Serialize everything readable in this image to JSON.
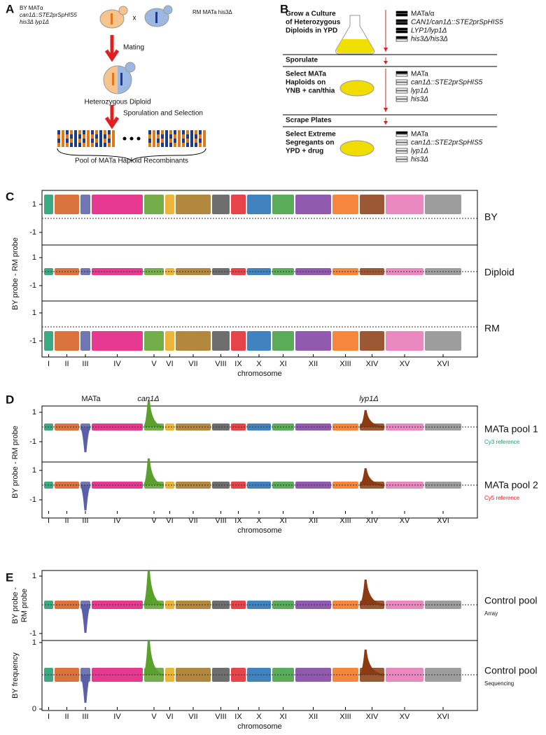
{
  "panel_a": {
    "letter": "A",
    "by_strain": [
      "BY MATα",
      "can1Δ::STE2prSpHIS5",
      "his3Δ lyp1Δ"
    ],
    "cross": "x",
    "rm_strain": "RM MATa his3Δ",
    "mating": "Mating",
    "diploid": "Heterozygous Diploid",
    "sporulation": "Sporulation and Selection",
    "pool": "Pool of MATa Haploid Recombinants"
  },
  "panel_b": {
    "letter": "B",
    "steps": [
      {
        "lines": [
          "Grow a Culture",
          "of Heterozygous",
          "Diploids in YPD"
        ],
        "genotypes": [
          "MATa/α",
          "CAN1/can1Δ::STE2prSpHIS5",
          "LYP1/lyp1Δ",
          "his3Δ/his3Δ"
        ]
      },
      {
        "lines": [
          "Sporulate"
        ]
      },
      {
        "lines": [
          "Select MATa",
          "Haploids on",
          "YNB + can/thia"
        ],
        "genotypes": [
          "MATa",
          "can1Δ::STE2prSpHIS5",
          "lyp1Δ",
          "his3Δ"
        ]
      },
      {
        "lines": [
          "Scrape Plates"
        ]
      },
      {
        "lines": [
          "Select Extreme",
          "Segregants on",
          "YPD + drug"
        ],
        "genotypes": [
          "MATa",
          "can1Δ::STE2prSpHIS5",
          "lyp1Δ",
          "his3Δ"
        ]
      }
    ]
  },
  "chromosomes": [
    {
      "label": "I",
      "color": "#1b9a6c"
    },
    {
      "label": "II",
      "color": "#d35a1c"
    },
    {
      "label": "III",
      "color": "#5b5ea8"
    },
    {
      "label": "IV",
      "color": "#e0187c"
    },
    {
      "label": "V",
      "color": "#5aa02c"
    },
    {
      "label": "VI",
      "color": "#e6a817"
    },
    {
      "label": "VII",
      "color": "#a5721c"
    },
    {
      "label": "VIII",
      "color": "#555555"
    },
    {
      "label": "IX",
      "color": "#e3222a"
    },
    {
      "label": "X",
      "color": "#1f6db4"
    },
    {
      "label": "XI",
      "color": "#3d9c3d"
    },
    {
      "label": "XII",
      "color": "#7d3ea0"
    },
    {
      "label": "XIII",
      "color": "#f2711c"
    },
    {
      "label": "XIV",
      "color": "#8b3a12"
    },
    {
      "label": "XV",
      "color": "#e574b4"
    },
    {
      "label": "XVI",
      "color": "#8c8c8c"
    }
  ],
  "axis_label": "chromosome",
  "panel_c": {
    "letter": "C",
    "y_label": [
      "BY probe - RM probe"
    ],
    "yticks": [
      "1",
      "-1"
    ],
    "tracks": [
      {
        "label": "BY"
      },
      {
        "label": "Diploid"
      },
      {
        "label": "RM"
      }
    ]
  },
  "panel_d": {
    "letter": "D",
    "y_label": [
      "BY probe - RM probe"
    ],
    "yticks": [
      "1",
      "-1"
    ],
    "annotations": [
      "MATa",
      "can1Δ",
      "lyp1Δ"
    ],
    "tracks": [
      {
        "label": "MATa pool 1",
        "sublabel": "Cy3 reference"
      },
      {
        "label": "MATa pool 2",
        "sublabel": "Cy5 reference"
      }
    ]
  },
  "panel_e": {
    "letter": "E",
    "tracks": [
      {
        "label": "Control pool",
        "sublabel": "Array",
        "y_label": [
          "BY probe -",
          "RM probe"
        ],
        "yticks": [
          "1",
          "-1"
        ]
      },
      {
        "label": "Control pool",
        "sublabel": "Sequencing",
        "y_label": [
          "BY frequency"
        ],
        "yticks": [
          "1",
          "0"
        ]
      }
    ]
  }
}
